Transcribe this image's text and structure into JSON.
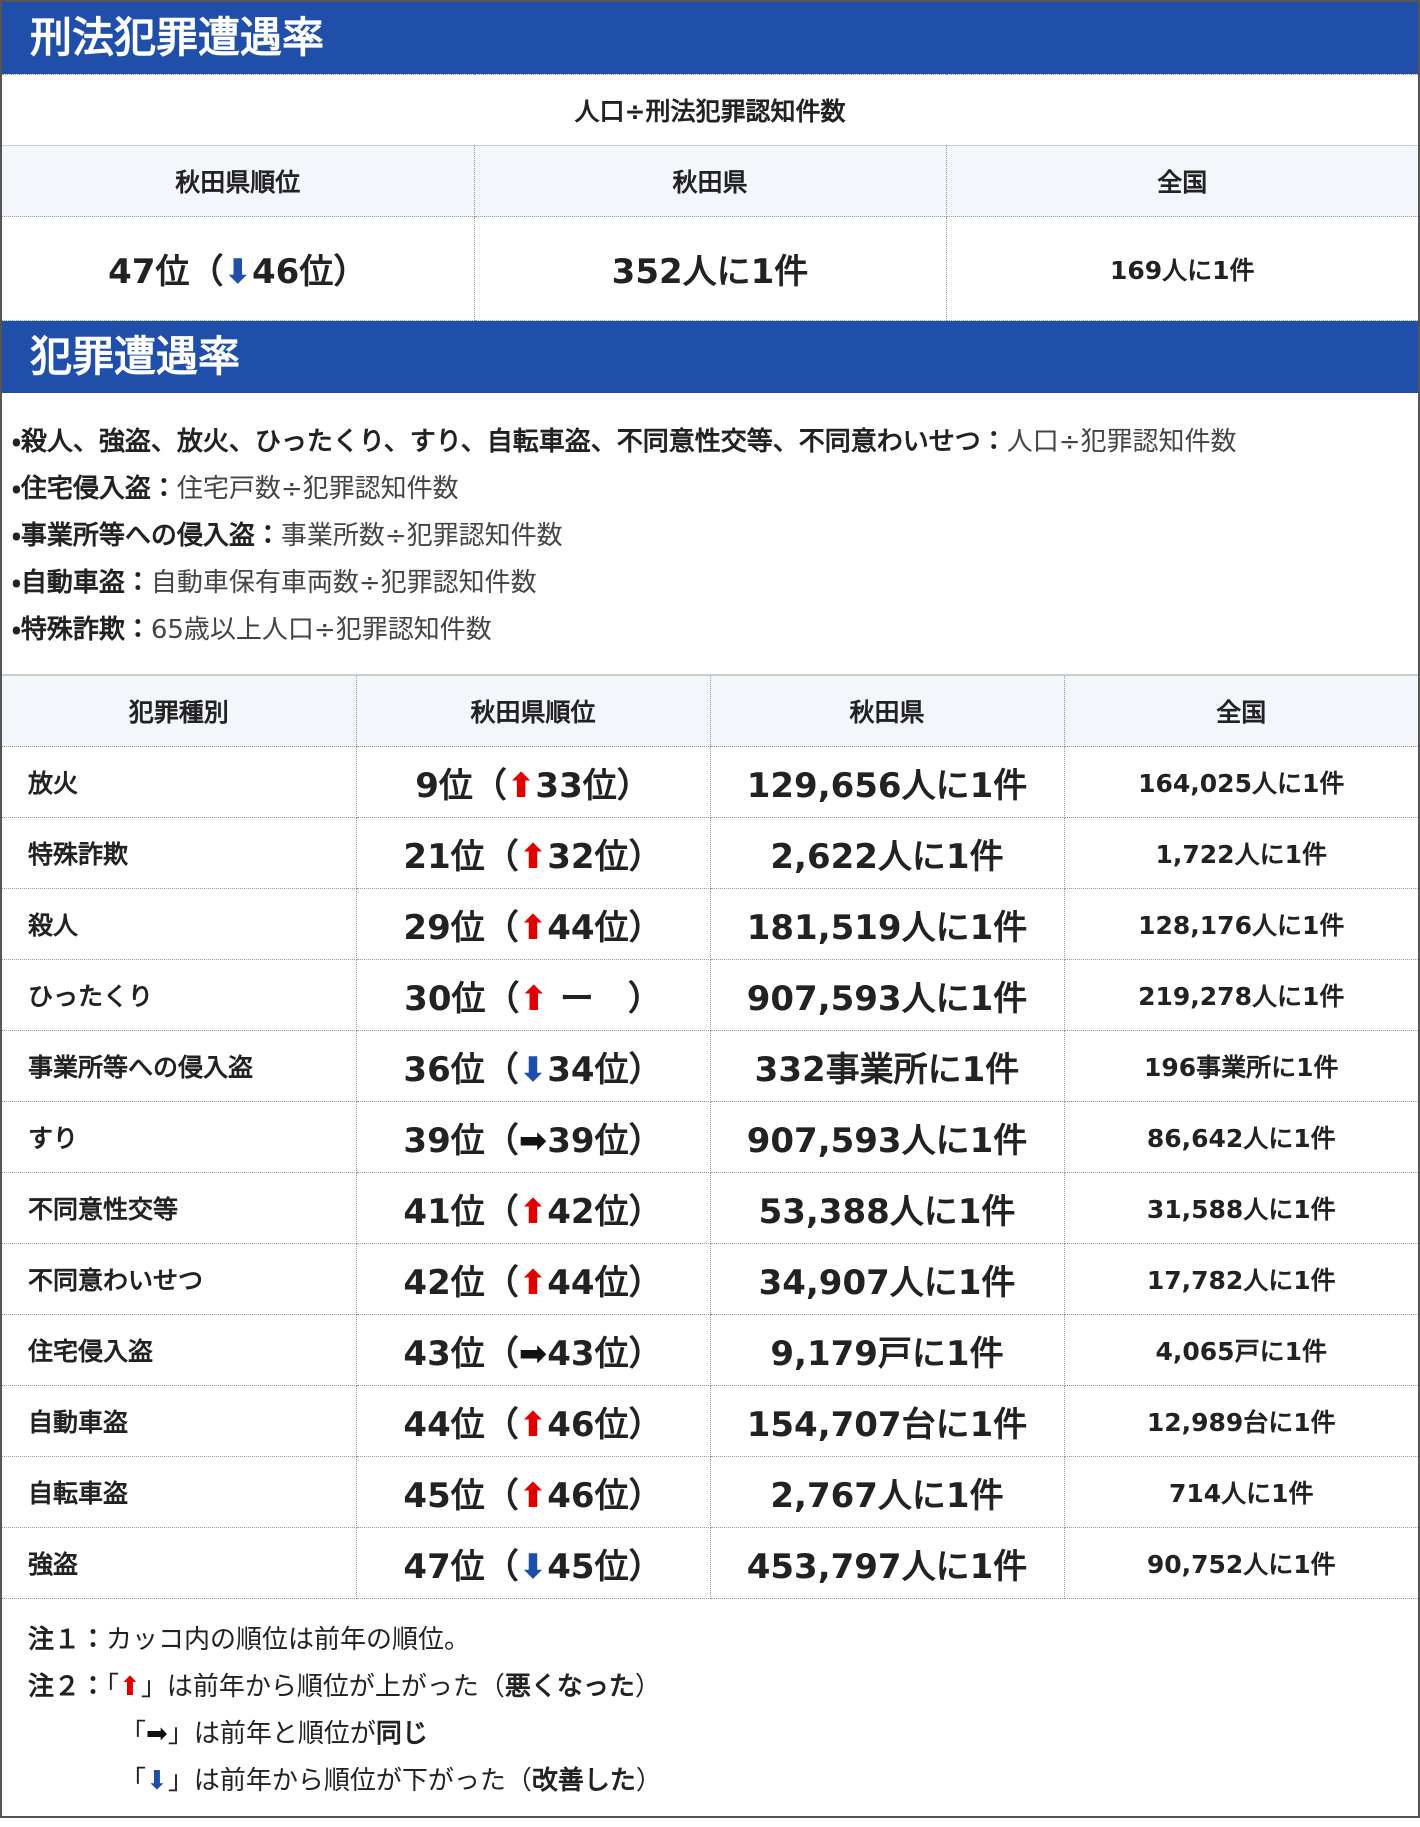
{
  "section1": {
    "title": "刑法犯罪遭遇率",
    "formula": "人口÷刑法犯罪認知件数",
    "headers": [
      "秋田県順位",
      "秋田県",
      "全国"
    ],
    "row": {
      "rank": {
        "before": "47位（",
        "arrow": "⬇",
        "arrow_color": "#1f4fa8",
        "after": "46位）"
      },
      "pref": "352人に1件",
      "national": "169人に1件"
    }
  },
  "section2": {
    "title": "犯罪遭遇率",
    "definitions": [
      [
        {
          "text": "・殺人、強盗、放火、ひったくり、すり、自転車盗、不同意性交等、不同意わいせつ：",
          "bold": true
        },
        {
          "text": "人口÷犯罪認知件数"
        }
      ],
      [
        {
          "text": "・住宅侵入盗：",
          "bold": true
        },
        {
          "text": "住宅戸数÷犯罪認知件数"
        }
      ],
      [
        {
          "text": "・事業所等への侵入盗：",
          "bold": true
        },
        {
          "text": "事業所数÷犯罪認知件数"
        }
      ],
      [
        {
          "text": "・自動車盗：",
          "bold": true
        },
        {
          "text": "自動車保有車両数÷犯罪認知件数"
        }
      ],
      [
        {
          "text": "・特殊詐欺：",
          "bold": true
        },
        {
          "text": "65歳以上人口÷犯罪認知件数"
        }
      ]
    ],
    "table": {
      "headers": [
        "犯罪種別",
        "秋田県順位",
        "秋田県",
        "全国"
      ],
      "rows": [
        {
          "type": "放火",
          "rank": {
            "before": "9位（",
            "arrow": "⬆",
            "arrow_color": "#e00000",
            "after": "33位）"
          },
          "pref": "129,656人に1件",
          "national": "164,025人に1件"
        },
        {
          "type": "特殊詐欺",
          "rank": {
            "before": "21位（",
            "arrow": "⬆",
            "arrow_color": "#e00000",
            "after": "32位）"
          },
          "pref": "2,622人に1件",
          "national": "1,722人に1件"
        },
        {
          "type": "殺人",
          "rank": {
            "before": "29位（",
            "arrow": "⬆",
            "arrow_color": "#e00000",
            "after": "44位）"
          },
          "pref": "181,519人に1件",
          "national": "128,176人に1件"
        },
        {
          "type": "ひったくり",
          "rank": {
            "before": "30位（",
            "arrow": "⬆",
            "arrow_color": "#e00000",
            "after": " ー　）"
          },
          "pref": "907,593人に1件",
          "national": "219,278人に1件"
        },
        {
          "type": "事業所等への侵入盗",
          "rank": {
            "before": "36位（",
            "arrow": "⬇",
            "arrow_color": "#1f4fa8",
            "after": "34位）"
          },
          "pref": "332事業所に1件",
          "national": "196事業所に1件"
        },
        {
          "type": "すり",
          "rank": {
            "before": "39位（",
            "arrow": "➡",
            "arrow_color": "#111111",
            "after": "39位）"
          },
          "pref": "907,593人に1件",
          "national": "86,642人に1件"
        },
        {
          "type": "不同意性交等",
          "rank": {
            "before": "41位（",
            "arrow": "⬆",
            "arrow_color": "#e00000",
            "after": "42位）"
          },
          "pref": "53,388人に1件",
          "national": "31,588人に1件"
        },
        {
          "type": "不同意わいせつ",
          "rank": {
            "before": "42位（",
            "arrow": "⬆",
            "arrow_color": "#e00000",
            "after": "44位）"
          },
          "pref": "34,907人に1件",
          "national": "17,782人に1件"
        },
        {
          "type": "住宅侵入盗",
          "rank": {
            "before": "43位（",
            "arrow": "➡",
            "arrow_color": "#111111",
            "after": "43位）"
          },
          "pref": "9,179戸に1件",
          "national": "4,065戸に1件"
        },
        {
          "type": "自動車盗",
          "rank": {
            "before": "44位（",
            "arrow": "⬆",
            "arrow_color": "#e00000",
            "after": "46位）"
          },
          "pref": "154,707台に1件",
          "national": "12,989台に1件"
        },
        {
          "type": "自転車盗",
          "rank": {
            "before": "45位（",
            "arrow": "⬆",
            "arrow_color": "#e00000",
            "after": "46位）"
          },
          "pref": "2,767人に1件",
          "national": "714人に1件"
        },
        {
          "type": "強盗",
          "rank": {
            "before": "47位（",
            "arrow": "⬇",
            "arrow_color": "#1f4fa8",
            "after": "45位）"
          },
          "pref": "453,797人に1件",
          "national": "90,752人に1件"
        }
      ]
    }
  },
  "notes": [
    {
      "segments": [
        {
          "text": "注１：",
          "bold": true
        },
        {
          "text": "カッコ内の順位は前年の順位。"
        }
      ]
    },
    {
      "segments": [
        {
          "text": "注２：",
          "bold": true
        },
        {
          "text": "「"
        },
        {
          "text": "⬆",
          "color": "#e00000"
        },
        {
          "text": "」は前年から順位が上がった（"
        },
        {
          "text": "悪くなった",
          "bold": true
        },
        {
          "text": "）"
        }
      ]
    },
    {
      "indent": true,
      "segments": [
        {
          "text": "「"
        },
        {
          "text": "➡",
          "color": "#111111"
        },
        {
          "text": "」は前年と順位が"
        },
        {
          "text": "同じ",
          "bold": true
        }
      ]
    },
    {
      "indent": true,
      "segments": [
        {
          "text": "「"
        },
        {
          "text": "⬇",
          "color": "#1f4fa8"
        },
        {
          "text": "」は前年から順位が下がった（"
        },
        {
          "text": "改善した",
          "bold": true
        },
        {
          "text": "）"
        }
      ]
    }
  ]
}
